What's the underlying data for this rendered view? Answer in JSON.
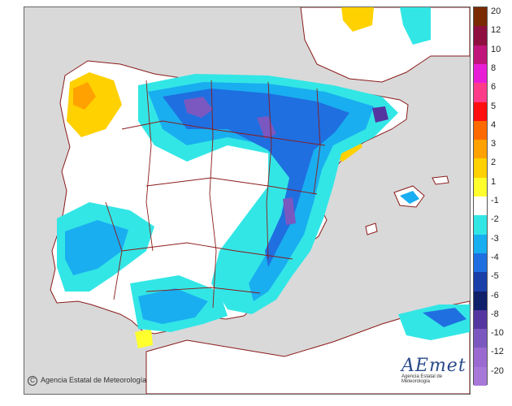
{
  "credit": {
    "symbol": "C",
    "text": "Agencia Estatal de Meteorología"
  },
  "logo": {
    "word": "AEmet",
    "subtitle": "Agencia Estatal de Meteorología"
  },
  "legend": {
    "items": [
      {
        "label": "20",
        "color": "#7a2a00"
      },
      {
        "label": "12",
        "color": "#8f0f3f"
      },
      {
        "label": "10",
        "color": "#c0157a"
      },
      {
        "label": "8",
        "color": "#e81ed6"
      },
      {
        "label": "6",
        "color": "#ff3c8a"
      },
      {
        "label": "5",
        "color": "#ff0f0f"
      },
      {
        "label": "4",
        "color": "#ff6a00"
      },
      {
        "label": "3",
        "color": "#ffa100"
      },
      {
        "label": "2",
        "color": "#ffd100"
      },
      {
        "label": "1",
        "color": "#ffff2e"
      },
      {
        "label": "-1",
        "color": "#ffffff"
      },
      {
        "label": "-2",
        "color": "#33e6e6"
      },
      {
        "label": "-3",
        "color": "#19aef0"
      },
      {
        "label": "-4",
        "color": "#1f6fe0"
      },
      {
        "label": "-5",
        "color": "#1a3fa8"
      },
      {
        "label": "-6",
        "color": "#0f1f6a"
      },
      {
        "label": "-8",
        "color": "#5536a0"
      },
      {
        "label": "-10",
        "color": "#7a58c0"
      },
      {
        "label": "-12",
        "color": "#9a6ad0"
      },
      {
        "label": "-20",
        "color": "#a778d8"
      }
    ]
  },
  "map": {
    "sea_color": "#d9d9d9",
    "land_color": "#ffffff",
    "border_color": "#8b1a1a"
  }
}
